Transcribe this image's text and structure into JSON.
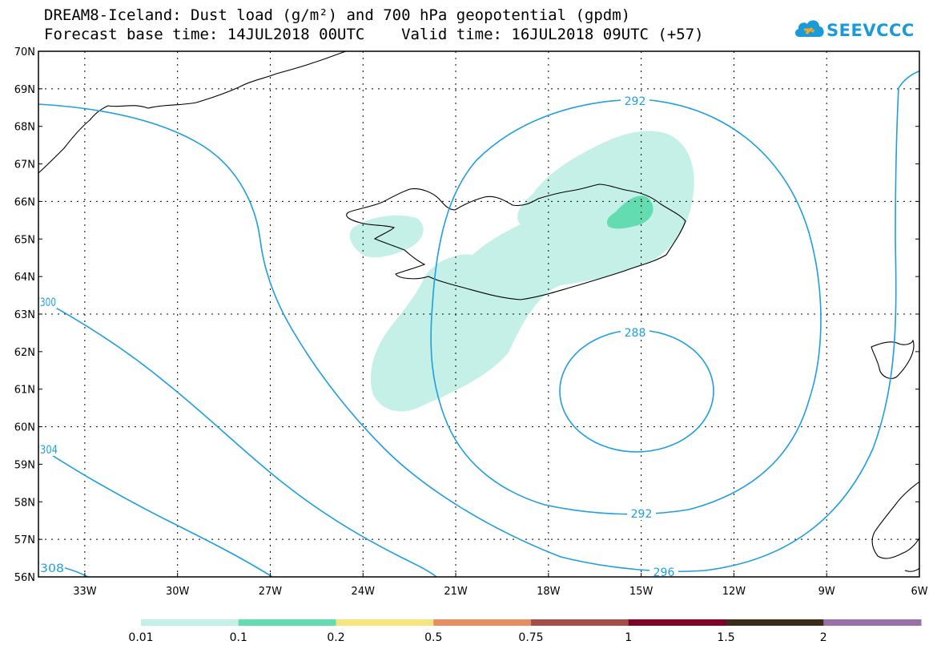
{
  "title_line1": "DREAM8-Iceland: Dust load (g/m²) and 700 hPa geopotential (gpdm)",
  "title_line2": "Forecast base time: 14JUL2018 00UTC    Valid time: 16JUL2018 09UTC (+57)",
  "logo_text": "SEEVCCC",
  "map": {
    "lon_range": [
      -34.5,
      -6
    ],
    "lat_range": [
      56,
      70
    ],
    "lat_labels": [
      "70N",
      "69N",
      "68N",
      "67N",
      "66N",
      "65N",
      "64N",
      "63N",
      "62N",
      "61N",
      "60N",
      "59N",
      "58N",
      "57N",
      "56N"
    ],
    "lon_labels": [
      "33W",
      "30W",
      "27W",
      "24W",
      "21W",
      "18W",
      "15W",
      "12W",
      "9W",
      "6W"
    ],
    "grid": "dotted",
    "contour_color": "#1f9ee0",
    "contour_labels": [
      "292",
      "288",
      "292",
      "296",
      "300",
      "304",
      "308"
    ]
  },
  "colorbar": {
    "labels": [
      "0.01",
      "0.1",
      "0.2",
      "0.5",
      "0.75",
      "1",
      "1.5",
      "2"
    ],
    "colors": [
      "#c4f0e8",
      "#64dcb2",
      "#f5e57a",
      "#e88c62",
      "#a84e48",
      "#800028",
      "#3c2a1a",
      "#9a70a8"
    ]
  }
}
